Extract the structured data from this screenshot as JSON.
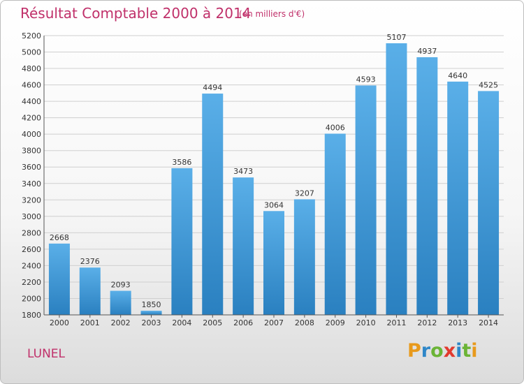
{
  "header": {
    "title": "Résultat Comptable 2000 à 2014",
    "subtitle": "(en milliers d'€)"
  },
  "footer": {
    "commune": "LUNEL",
    "logo_text": "Proxiti"
  },
  "colors": {
    "title": "#c0306a",
    "bar_top": "#5aafe8",
    "bar_bottom": "#2a80c0",
    "logo_letters": [
      "#e89a1c",
      "#2f87c8",
      "#6bb436",
      "#e23a2e",
      "#2f87c8",
      "#6bb436",
      "#e89a1c"
    ]
  },
  "chart_data": {
    "type": "bar",
    "title": "Résultat Comptable 2000 à 2014",
    "subtitle": "(en milliers d'€)",
    "xlabel": "",
    "ylabel": "",
    "categories": [
      "2000",
      "2001",
      "2002",
      "2003",
      "2004",
      "2005",
      "2006",
      "2007",
      "2008",
      "2009",
      "2010",
      "2011",
      "2012",
      "2013",
      "2014"
    ],
    "values": [
      2668,
      2376,
      2093,
      1850,
      3586,
      4494,
      3473,
      3064,
      3207,
      4006,
      4593,
      5107,
      4937,
      4640,
      4525
    ],
    "ylim": [
      1800,
      5200
    ],
    "yticks": [
      1800,
      2000,
      2200,
      2400,
      2600,
      2800,
      3000,
      3200,
      3400,
      3600,
      3800,
      4000,
      4200,
      4400,
      4600,
      4800,
      5000,
      5200
    ],
    "grid": true,
    "legend": "none"
  }
}
